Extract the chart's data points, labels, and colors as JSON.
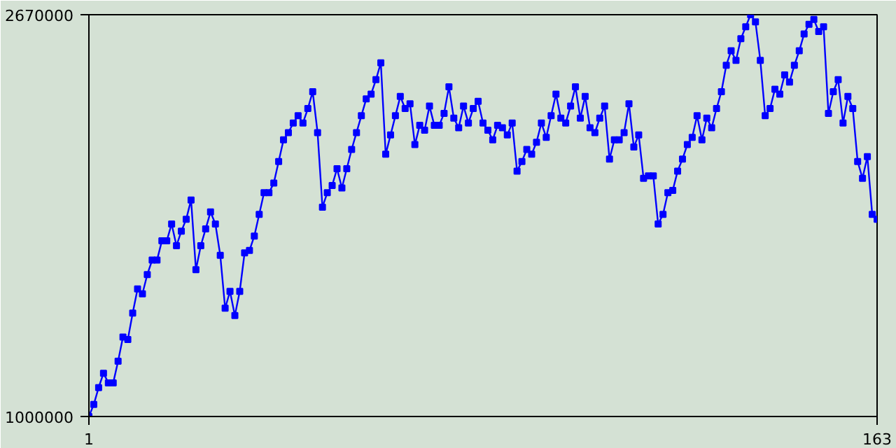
{
  "chart_data": {
    "type": "line",
    "color": "#0000ff",
    "marker": "square",
    "xlim": [
      1,
      163
    ],
    "ylim": [
      1000000,
      2670000
    ],
    "xticks": [
      1,
      163
    ],
    "yticks": [
      1000000,
      2670000
    ],
    "x": [
      1,
      2,
      3,
      4,
      5,
      6,
      7,
      8,
      9,
      10,
      11,
      12,
      13,
      14,
      15,
      16,
      17,
      18,
      19,
      20,
      21,
      22,
      23,
      24,
      25,
      26,
      27,
      28,
      29,
      30,
      31,
      32,
      33,
      34,
      35,
      36,
      37,
      38,
      39,
      40,
      41,
      42,
      43,
      44,
      45,
      46,
      47,
      48,
      49,
      50,
      51,
      52,
      53,
      54,
      55,
      56,
      57,
      58,
      59,
      60,
      61,
      62,
      63,
      64,
      65,
      66,
      67,
      68,
      69,
      70,
      71,
      72,
      73,
      74,
      75,
      76,
      77,
      78,
      79,
      80,
      81,
      82,
      83,
      84,
      85,
      86,
      87,
      88,
      89,
      90,
      91,
      92,
      93,
      94,
      95,
      96,
      97,
      98,
      99,
      100,
      101,
      102,
      103,
      104,
      105,
      106,
      107,
      108,
      109,
      110,
      111,
      112,
      113,
      114,
      115,
      116,
      117,
      118,
      119,
      120,
      121,
      122,
      123,
      124,
      125,
      126,
      127,
      128,
      129,
      130,
      131,
      132,
      133,
      134,
      135,
      136,
      137,
      138,
      139,
      140,
      141,
      142,
      143,
      144,
      145,
      146,
      147,
      148,
      149,
      150,
      151,
      152,
      153,
      154,
      155,
      156,
      157,
      158,
      159,
      160,
      161,
      162,
      163
    ],
    "values": [
      1000000,
      1050000,
      1120000,
      1180000,
      1140000,
      1140000,
      1230000,
      1330000,
      1320000,
      1430000,
      1530000,
      1510000,
      1590000,
      1650000,
      1650000,
      1730000,
      1730000,
      1800000,
      1710000,
      1770000,
      1820000,
      1900000,
      1610000,
      1710000,
      1780000,
      1850000,
      1800000,
      1670000,
      1450000,
      1520000,
      1420000,
      1520000,
      1680000,
      1690000,
      1750000,
      1840000,
      1930000,
      1930000,
      1970000,
      2060000,
      2150000,
      2180000,
      2220000,
      2250000,
      2220000,
      2280000,
      2350000,
      2180000,
      1870000,
      1930000,
      1960000,
      2030000,
      1950000,
      2030000,
      2110000,
      2180000,
      2250000,
      2320000,
      2340000,
      2400000,
      2470000,
      2090000,
      2170000,
      2250000,
      2330000,
      2280000,
      2300000,
      2130000,
      2210000,
      2190000,
      2290000,
      2210000,
      2210000,
      2260000,
      2370000,
      2240000,
      2200000,
      2290000,
      2220000,
      2280000,
      2310000,
      2220000,
      2190000,
      2150000,
      2210000,
      2200000,
      2170000,
      2220000,
      2020000,
      2060000,
      2110000,
      2090000,
      2140000,
      2220000,
      2160000,
      2250000,
      2340000,
      2240000,
      2220000,
      2290000,
      2370000,
      2240000,
      2330000,
      2200000,
      2180000,
      2240000,
      2290000,
      2070000,
      2150000,
      2150000,
      2180000,
      2300000,
      2120000,
      2170000,
      1990000,
      2000000,
      2000000,
      1800000,
      1840000,
      1930000,
      1940000,
      2020000,
      2070000,
      2130000,
      2160000,
      2250000,
      2150000,
      2240000,
      2200000,
      2280000,
      2350000,
      2460000,
      2520000,
      2480000,
      2570000,
      2620000,
      2670000,
      2640000,
      2480000,
      2250000,
      2280000,
      2360000,
      2340000,
      2420000,
      2390000,
      2460000,
      2520000,
      2590000,
      2630000,
      2650000,
      2600000,
      2620000,
      2260000,
      2350000,
      2400000,
      2220000,
      2330000,
      2280000,
      2060000,
      1990000,
      2080000,
      1840000,
      1820000
    ]
  }
}
